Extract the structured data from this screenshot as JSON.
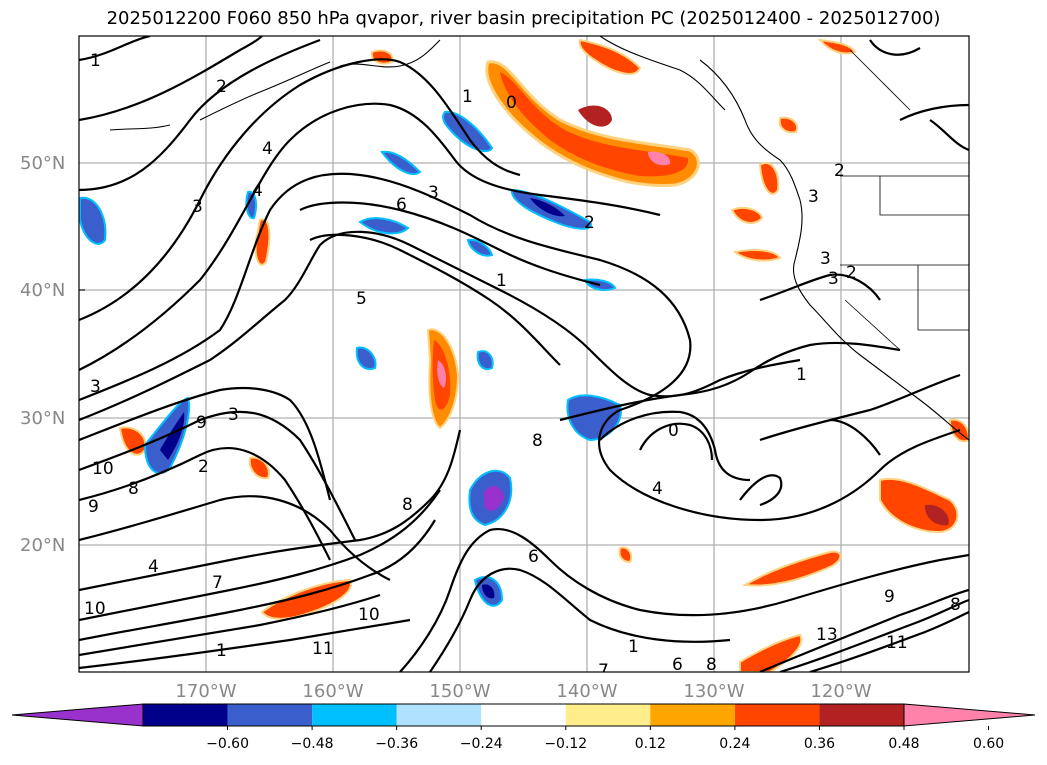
{
  "title": "2025012200 F060 850 hPa qvapor, river basin precipitation PC (2025012400 - 2025012700)",
  "map": {
    "lat_labels": [
      "50°N",
      "40°N",
      "30°N",
      "20°N"
    ],
    "lon_labels": [
      "170°W",
      "160°W",
      "150°W",
      "140°W",
      "130°W",
      "120°W"
    ],
    "contour_labels": [
      "1",
      "2",
      "4",
      "3",
      "4",
      "3",
      "6",
      "5",
      "1",
      "0",
      "1",
      "3",
      "2",
      "3",
      "2",
      "2",
      "3",
      "1",
      "0",
      "4",
      "8",
      "9",
      "10",
      "8",
      "9",
      "3",
      "3",
      "2",
      "7",
      "8",
      "6",
      "10",
      "11",
      "10",
      "11",
      "13",
      "8",
      "1",
      "7",
      "6",
      "8",
      "1",
      "9",
      "4"
    ]
  },
  "colorbar": {
    "ticks": [
      "−0.60",
      "−0.48",
      "−0.36",
      "−0.24",
      "−0.12",
      "0.12",
      "0.24",
      "0.36",
      "0.48",
      "0.60"
    ],
    "colors": [
      "#9932cc",
      "#00008b",
      "#3a5fcd",
      "#00bfff",
      "#b0e2ff",
      "#ffffff",
      "#ffec8b",
      "#ffa500",
      "#ff4500",
      "#b22222",
      "#ff82ab"
    ]
  }
}
